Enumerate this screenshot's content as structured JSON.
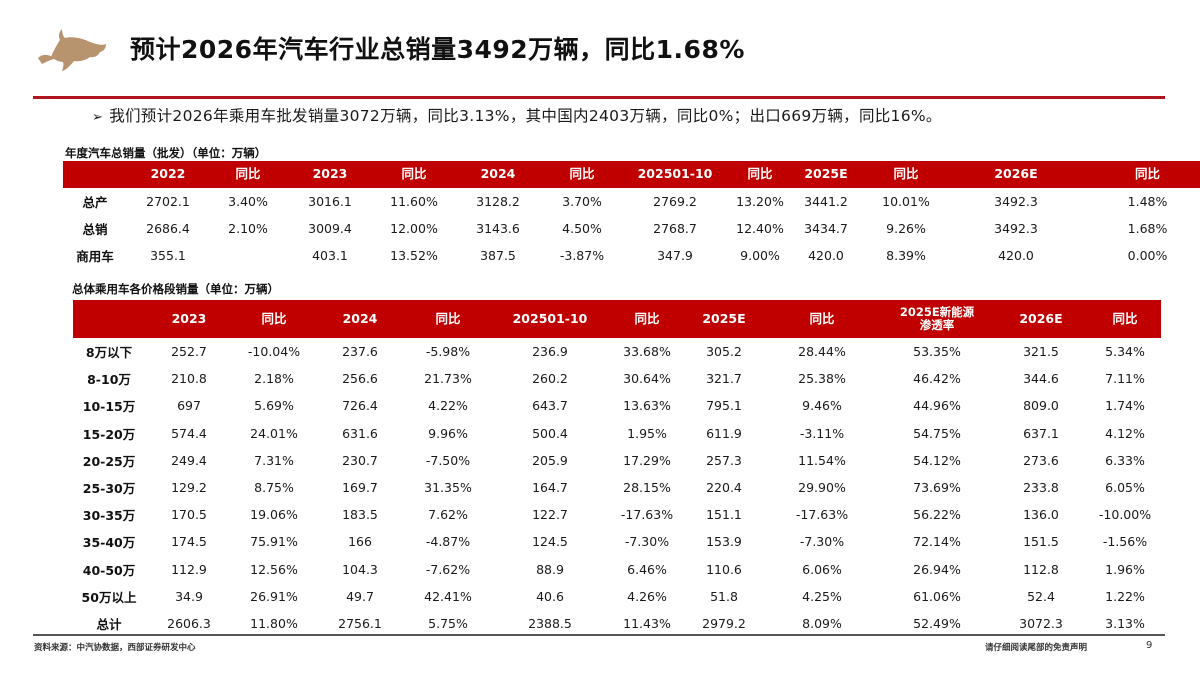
{
  "header": {
    "title": "预计2026年汽车行业总销量3492万辆，同比1.68%",
    "logo_icon": "bull-logo-icon",
    "accent_color": "#b0141f",
    "logo_color": "#b8946e"
  },
  "bullet": {
    "marker": "➢",
    "text": "我们预计2026年乘用车批发销量3072万辆，同比3.13%，其中国内2403万辆，同比0%；出口669万辆，同比16%。"
  },
  "table1": {
    "caption": "年度汽车总销量（批发）（单位：万辆）",
    "header_color": "#c00000",
    "columns": [
      "",
      "2022",
      "同比",
      "2023",
      "同比",
      "2024",
      "同比",
      "202501-10",
      "同比",
      "2025E",
      "同比",
      "2026E",
      "同比"
    ],
    "rows": [
      [
        "总产",
        "2702.1",
        "3.40%",
        "3016.1",
        "11.60%",
        "3128.2",
        "3.70%",
        "2769.2",
        "13.20%",
        "3441.2",
        "10.01%",
        "3492.3",
        "1.48%"
      ],
      [
        "总销",
        "2686.4",
        "2.10%",
        "3009.4",
        "12.00%",
        "3143.6",
        "4.50%",
        "2768.7",
        "12.40%",
        "3434.7",
        "9.26%",
        "3492.3",
        "1.68%"
      ],
      [
        "商用车",
        "355.1",
        "",
        "403.1",
        "13.52%",
        "387.5",
        "-3.87%",
        "347.9",
        "9.00%",
        "420.0",
        "8.39%",
        "420.0",
        "0.00%"
      ]
    ]
  },
  "table2": {
    "caption": "总体乘用车各价格段销量（单位：万辆）",
    "header_color": "#c00000",
    "columns": [
      "",
      "2023",
      "同比",
      "2024",
      "同比",
      "202501-10",
      "同比",
      "2025E",
      "同比",
      "2025E新能源\n渗透率",
      "2026E",
      "同比"
    ],
    "rows": [
      [
        "8万以下",
        "252.7",
        "-10.04%",
        "237.6",
        "-5.98%",
        "236.9",
        "33.68%",
        "305.2",
        "28.44%",
        "53.35%",
        "321.5",
        "5.34%"
      ],
      [
        "8-10万",
        "210.8",
        "2.18%",
        "256.6",
        "21.73%",
        "260.2",
        "30.64%",
        "321.7",
        "25.38%",
        "46.42%",
        "344.6",
        "7.11%"
      ],
      [
        "10-15万",
        "697",
        "5.69%",
        "726.4",
        "4.22%",
        "643.7",
        "13.63%",
        "795.1",
        "9.46%",
        "44.96%",
        "809.0",
        "1.74%"
      ],
      [
        "15-20万",
        "574.4",
        "24.01%",
        "631.6",
        "9.96%",
        "500.4",
        "1.95%",
        "611.9",
        "-3.11%",
        "54.75%",
        "637.1",
        "4.12%"
      ],
      [
        "20-25万",
        "249.4",
        "7.31%",
        "230.7",
        "-7.50%",
        "205.9",
        "17.29%",
        "257.3",
        "11.54%",
        "54.12%",
        "273.6",
        "6.33%"
      ],
      [
        "25-30万",
        "129.2",
        "8.75%",
        "169.7",
        "31.35%",
        "164.7",
        "28.15%",
        "220.4",
        "29.90%",
        "73.69%",
        "233.8",
        "6.05%"
      ],
      [
        "30-35万",
        "170.5",
        "19.06%",
        "183.5",
        "7.62%",
        "122.7",
        "-17.63%",
        "151.1",
        "-17.63%",
        "56.22%",
        "136.0",
        "-10.00%"
      ],
      [
        "35-40万",
        "174.5",
        "75.91%",
        "166",
        "-4.87%",
        "124.5",
        "-7.30%",
        "153.9",
        "-7.30%",
        "72.14%",
        "151.5",
        "-1.56%"
      ],
      [
        "40-50万",
        "112.9",
        "12.56%",
        "104.3",
        "-7.62%",
        "88.9",
        "6.46%",
        "110.6",
        "6.06%",
        "26.94%",
        "112.8",
        "1.96%"
      ],
      [
        "50万以上",
        "34.9",
        "26.91%",
        "49.7",
        "42.41%",
        "40.6",
        "4.26%",
        "51.8",
        "4.25%",
        "61.06%",
        "52.4",
        "1.22%"
      ],
      [
        "总计",
        "2606.3",
        "11.80%",
        "2756.1",
        "5.75%",
        "2388.5",
        "11.43%",
        "2979.2",
        "8.09%",
        "52.49%",
        "3072.3",
        "3.13%"
      ]
    ]
  },
  "footer": {
    "source": "资料来源：中汽协数据，西部证券研发中心",
    "disclaimer": "请仔细阅读尾部的免责声明",
    "page_number": "9"
  }
}
